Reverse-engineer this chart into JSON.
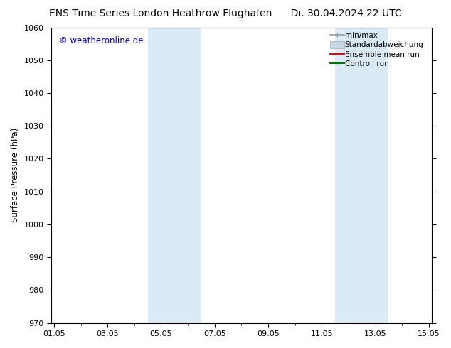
{
  "title_left": "ENS Time Series London Heathrow Flughafen",
  "title_right": "Di. 30.04.2024 22 UTC",
  "ylabel": "Surface Pressure (hPa)",
  "watermark": "© weatheronline.de",
  "watermark_color": "#0000cc",
  "ylim": [
    970,
    1060
  ],
  "yticks": [
    970,
    980,
    990,
    1000,
    1010,
    1020,
    1030,
    1040,
    1050,
    1060
  ],
  "xtick_labels": [
    "01.05",
    "03.05",
    "05.05",
    "07.05",
    "09.05",
    "11.05",
    "13.05",
    "15.05"
  ],
  "xtick_positions": [
    0,
    2,
    4,
    6,
    8,
    10,
    12,
    14
  ],
  "xlim": [
    -0.1,
    14.1
  ],
  "shaded_regions": [
    {
      "xmin": 3.5,
      "xmax": 5.5,
      "color": "#daeaf7"
    },
    {
      "xmin": 10.5,
      "xmax": 12.5,
      "color": "#daeaf7"
    }
  ],
  "background_color": "#ffffff",
  "plot_bg_color": "#ffffff",
  "grid_color": "#dddddd",
  "legend_entries": [
    {
      "label": "min/max",
      "color": "#999999",
      "lw": 1.2,
      "style": "minmax"
    },
    {
      "label": "Standardabweichung",
      "color": "#c8d8e8",
      "lw": 8,
      "style": "band"
    },
    {
      "label": "Ensemble mean run",
      "color": "#ff0000",
      "lw": 1.5,
      "style": "line"
    },
    {
      "label": "Controll run",
      "color": "#007700",
      "lw": 1.5,
      "style": "line"
    }
  ],
  "title_fontsize": 10,
  "axis_label_fontsize": 8.5,
  "tick_fontsize": 8,
  "watermark_fontsize": 8.5,
  "legend_fontsize": 7.5
}
